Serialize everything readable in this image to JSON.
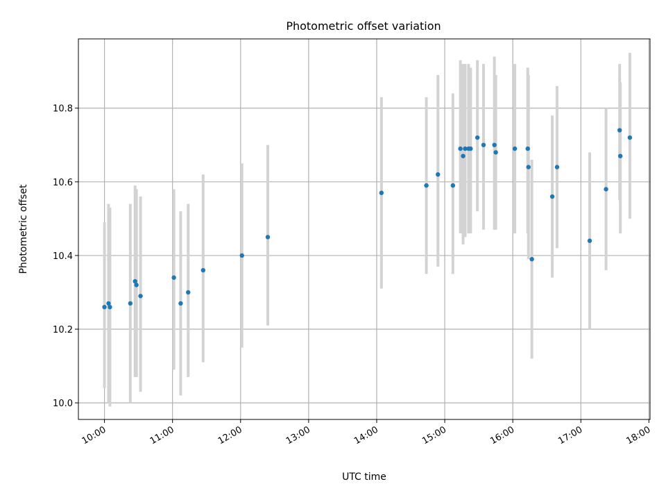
{
  "chart_data": {
    "type": "scatter",
    "title": "Photometric offset variation",
    "xlabel": "UTC time",
    "ylabel": "Photometric offset",
    "grid": true,
    "xlim": [
      9.617,
      18.0167
    ],
    "ylim": [
      9.955,
      10.988
    ],
    "x_ticks": [
      {
        "value": 10,
        "label": "10:00"
      },
      {
        "value": 11,
        "label": "11:00"
      },
      {
        "value": 12,
        "label": "12:00"
      },
      {
        "value": 13,
        "label": "13:00"
      },
      {
        "value": 14,
        "label": "14:00"
      },
      {
        "value": 15,
        "label": "15:00"
      },
      {
        "value": 16,
        "label": "16:00"
      },
      {
        "value": 17,
        "label": "17:00"
      },
      {
        "value": 18,
        "label": "18:00"
      }
    ],
    "y_ticks": [
      {
        "value": 10.0,
        "label": "10.0"
      },
      {
        "value": 10.2,
        "label": "10.2"
      },
      {
        "value": 10.4,
        "label": "10.4"
      },
      {
        "value": 10.6,
        "label": "10.6"
      },
      {
        "value": 10.8,
        "label": "10.8"
      }
    ],
    "colors": {
      "point": "#1f77b4",
      "errorbar": "#d3d3d3",
      "grid": "#b0b0b0"
    },
    "points": [
      {
        "t": 10.0,
        "y": 10.26,
        "lo": 10.04,
        "hi": 10.49
      },
      {
        "t": 10.06,
        "y": 10.27,
        "lo": 10.0,
        "hi": 10.54
      },
      {
        "t": 10.08,
        "y": 10.26,
        "lo": 9.99,
        "hi": 10.53
      },
      {
        "t": 10.38,
        "y": 10.27,
        "lo": 10.0,
        "hi": 10.54
      },
      {
        "t": 10.45,
        "y": 10.33,
        "lo": 10.07,
        "hi": 10.59
      },
      {
        "t": 10.47,
        "y": 10.32,
        "lo": 10.07,
        "hi": 10.58
      },
      {
        "t": 10.53,
        "y": 10.29,
        "lo": 10.03,
        "hi": 10.56
      },
      {
        "t": 11.02,
        "y": 10.34,
        "lo": 10.09,
        "hi": 10.58
      },
      {
        "t": 11.12,
        "y": 10.27,
        "lo": 10.02,
        "hi": 10.52
      },
      {
        "t": 11.23,
        "y": 10.3,
        "lo": 10.07,
        "hi": 10.54
      },
      {
        "t": 11.45,
        "y": 10.36,
        "lo": 10.11,
        "hi": 10.62
      },
      {
        "t": 12.02,
        "y": 10.4,
        "lo": 10.15,
        "hi": 10.65
      },
      {
        "t": 12.4,
        "y": 10.45,
        "lo": 10.21,
        "hi": 10.7
      },
      {
        "t": 14.07,
        "y": 10.57,
        "lo": 10.31,
        "hi": 10.83
      },
      {
        "t": 14.73,
        "y": 10.59,
        "lo": 10.35,
        "hi": 10.83
      },
      {
        "t": 14.9,
        "y": 10.62,
        "lo": 10.37,
        "hi": 10.89
      },
      {
        "t": 15.12,
        "y": 10.59,
        "lo": 10.35,
        "hi": 10.84
      },
      {
        "t": 15.23,
        "y": 10.69,
        "lo": 10.46,
        "hi": 10.93
      },
      {
        "t": 15.27,
        "y": 10.67,
        "lo": 10.43,
        "hi": 10.92
      },
      {
        "t": 15.3,
        "y": 10.69,
        "lo": 10.45,
        "hi": 10.92
      },
      {
        "t": 15.35,
        "y": 10.69,
        "lo": 10.46,
        "hi": 10.92
      },
      {
        "t": 15.38,
        "y": 10.69,
        "lo": 10.46,
        "hi": 10.91
      },
      {
        "t": 15.48,
        "y": 10.72,
        "lo": 10.52,
        "hi": 10.93
      },
      {
        "t": 15.57,
        "y": 10.7,
        "lo": 10.47,
        "hi": 10.92
      },
      {
        "t": 15.73,
        "y": 10.7,
        "lo": 10.47,
        "hi": 10.94
      },
      {
        "t": 15.75,
        "y": 10.68,
        "lo": 10.47,
        "hi": 10.89
      },
      {
        "t": 16.03,
        "y": 10.69,
        "lo": 10.46,
        "hi": 10.92
      },
      {
        "t": 16.22,
        "y": 10.69,
        "lo": 10.46,
        "hi": 10.91
      },
      {
        "t": 16.23,
        "y": 10.64,
        "lo": 10.39,
        "hi": 10.89
      },
      {
        "t": 16.28,
        "y": 10.39,
        "lo": 10.12,
        "hi": 10.66
      },
      {
        "t": 16.58,
        "y": 10.56,
        "lo": 10.34,
        "hi": 10.78
      },
      {
        "t": 16.65,
        "y": 10.64,
        "lo": 10.42,
        "hi": 10.86
      },
      {
        "t": 17.13,
        "y": 10.44,
        "lo": 10.2,
        "hi": 10.68
      },
      {
        "t": 17.37,
        "y": 10.58,
        "lo": 10.36,
        "hi": 10.8
      },
      {
        "t": 17.57,
        "y": 10.74,
        "lo": 10.55,
        "hi": 10.92
      },
      {
        "t": 17.58,
        "y": 10.67,
        "lo": 10.46,
        "hi": 10.87
      },
      {
        "t": 17.72,
        "y": 10.72,
        "lo": 10.5,
        "hi": 10.95
      }
    ]
  }
}
